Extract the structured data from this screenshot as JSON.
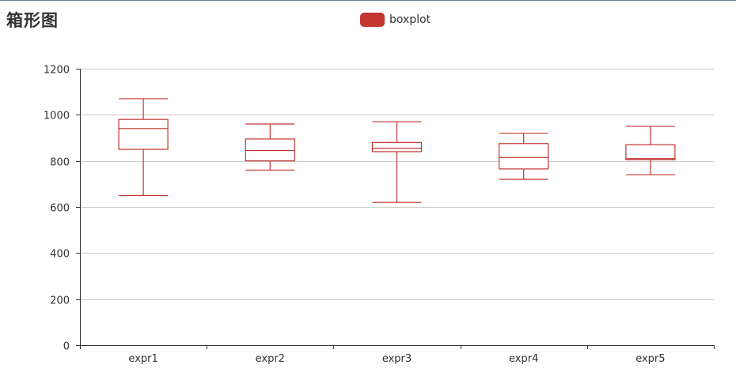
{
  "title": "箱形图",
  "legend": {
    "label": "boxplot",
    "color": "#c23531"
  },
  "colors": {
    "series": "#c23531",
    "axis": "#333333",
    "grid": "#cccccc",
    "text": "#333333"
  },
  "chart_data": {
    "type": "boxplot",
    "title": "箱形图",
    "categories": [
      "expr1",
      "expr2",
      "expr3",
      "expr4",
      "expr5"
    ],
    "series": [
      {
        "name": "boxplot",
        "values": [
          {
            "min": 650,
            "q1": 850,
            "median": 940,
            "q3": 980,
            "max": 1070
          },
          {
            "min": 760,
            "q1": 800,
            "median": 845,
            "q3": 895,
            "max": 960
          },
          {
            "min": 620,
            "q1": 840,
            "median": 855,
            "q3": 880,
            "max": 970
          },
          {
            "min": 720,
            "q1": 765,
            "median": 815,
            "q3": 875,
            "max": 920
          },
          {
            "min": 740,
            "q1": 805,
            "median": 810,
            "q3": 870,
            "max": 950
          }
        ]
      }
    ],
    "ylim": [
      0,
      1200
    ],
    "yticks": [
      0,
      200,
      400,
      600,
      800,
      1000,
      1200
    ],
    "xlabel": "",
    "ylabel": "",
    "grid": true,
    "legend_position": "top-center"
  }
}
